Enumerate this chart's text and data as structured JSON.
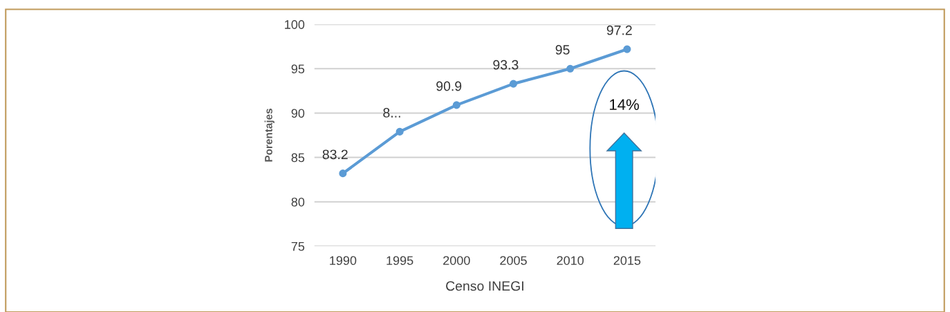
{
  "chart_data": {
    "type": "line",
    "xlabel": "Censo INEGI",
    "ylabel": "Porentajes",
    "categories": [
      "1990",
      "1995",
      "2000",
      "2005",
      "2010",
      "2015"
    ],
    "series": [
      {
        "color": "#5b9bd5",
        "values": [
          83.2,
          87.9,
          90.9,
          93.3,
          95,
          97.2
        ],
        "value_labels": [
          "83.2",
          "8...",
          "90.9",
          "93.3",
          "95",
          "97.2"
        ]
      }
    ],
    "ylim": [
      75,
      100
    ],
    "yticks": [
      75,
      80,
      85,
      90,
      95,
      100
    ],
    "grid": "y",
    "marker": "circle",
    "line_style": "solid",
    "annotations": [
      "14%"
    ]
  }
}
